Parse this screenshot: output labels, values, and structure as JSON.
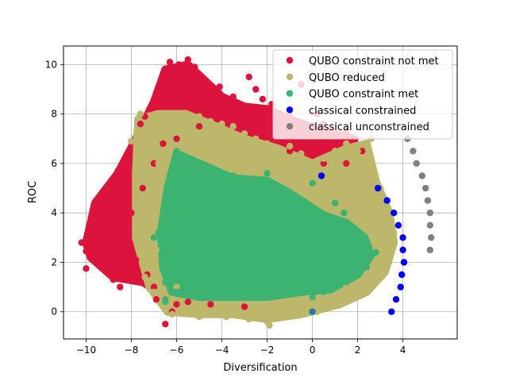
{
  "chart_data": {
    "type": "scatter",
    "title": "",
    "xlabel": "Diversification",
    "ylabel": "ROC",
    "xlim": [
      -11,
      6.4
    ],
    "ylim": [
      -1.1,
      10.75
    ],
    "xticks": [
      -10,
      -8,
      -6,
      -4,
      -2,
      0,
      2,
      4
    ],
    "xtick_labels": [
      "−10",
      "−8",
      "−6",
      "−4",
      "−2",
      "0",
      "2",
      "4"
    ],
    "yticks": [
      0,
      2,
      4,
      6,
      8,
      10
    ],
    "ytick_labels": [
      "0",
      "2",
      "4",
      "6",
      "8",
      "10"
    ],
    "grid": true,
    "legend_position": "top-right",
    "series": [
      {
        "name": "QUBO constraint not met",
        "color": "#dc143c",
        "points": [
          [
            -10.2,
            2.8
          ],
          [
            -10.0,
            1.75
          ],
          [
            -10.0,
            2.45
          ],
          [
            -9.6,
            2.9
          ],
          [
            -9.5,
            3.5
          ],
          [
            -9.4,
            4.5
          ],
          [
            -9.2,
            4.1
          ],
          [
            -9.0,
            5.0
          ],
          [
            -8.8,
            1.3
          ],
          [
            -8.6,
            5.7
          ],
          [
            -8.5,
            1.0
          ],
          [
            -8.4,
            3.2
          ],
          [
            -8.2,
            6.2
          ],
          [
            -8.0,
            6.9
          ],
          [
            -7.8,
            2.1
          ],
          [
            -7.6,
            7.6
          ],
          [
            -7.4,
            7.9
          ],
          [
            -7.2,
            8.2
          ],
          [
            -7.0,
            8.4
          ],
          [
            -7.0,
            1.0
          ],
          [
            -6.9,
            0.5
          ],
          [
            -6.8,
            8.6
          ],
          [
            -6.6,
            8.9
          ],
          [
            -6.6,
            9.2
          ],
          [
            -6.5,
            -0.5
          ],
          [
            -6.4,
            9.5
          ],
          [
            -6.3,
            10.1
          ],
          [
            -6.0,
            9.7
          ],
          [
            -5.9,
            10.0
          ],
          [
            -5.5,
            10.2
          ],
          [
            -5.2,
            9.9
          ],
          [
            -5.0,
            9.6
          ],
          [
            -4.8,
            9.3
          ],
          [
            -4.5,
            9.0
          ],
          [
            -4.2,
            8.7
          ],
          [
            -4.1,
            9.1
          ],
          [
            -3.9,
            8.3
          ],
          [
            -3.5,
            8.7
          ],
          [
            -3.2,
            8.4
          ],
          [
            -3.0,
            8.2
          ],
          [
            -2.8,
            9.5
          ],
          [
            -2.5,
            9.0
          ],
          [
            -2.4,
            7.8
          ],
          [
            -2.2,
            8.6
          ],
          [
            -1.8,
            8.4
          ],
          [
            -1.5,
            7.5
          ],
          [
            -1.0,
            7.9
          ],
          [
            -0.5,
            9.2
          ],
          [
            -0.2,
            7.3
          ],
          [
            0.2,
            8.0
          ],
          [
            0.5,
            7.6
          ],
          [
            0.8,
            7.3
          ],
          [
            1.1,
            7.1
          ],
          [
            1.5,
            7.3
          ],
          [
            1.9,
            7.0
          ],
          [
            0.5,
            6.0
          ],
          [
            -6.0,
            0.3
          ],
          [
            -5.5,
            0.4
          ],
          [
            -4.5,
            0.3
          ],
          [
            -6.2,
            0.0
          ],
          [
            -3.0,
            0.2
          ],
          [
            -4.0,
            8.0
          ],
          [
            -5.0,
            7.5
          ],
          [
            -6.0,
            7.0
          ],
          [
            -7.0,
            6.0
          ],
          [
            -8.0,
            4.0
          ],
          [
            -9.0,
            3.5
          ],
          [
            -8.6,
            2.6
          ],
          [
            -8.0,
            1.8
          ],
          [
            -7.3,
            1.5
          ],
          [
            -2.0,
            7.5
          ],
          [
            -1.0,
            6.5
          ],
          [
            0.8,
            6.8
          ],
          [
            1.5,
            6.0
          ],
          [
            2.2,
            6.5
          ],
          [
            -6.6,
            6.8
          ],
          [
            -7.5,
            5.0
          ],
          [
            -8.3,
            4.8
          ],
          [
            -9.3,
            3.0
          ],
          [
            -8.9,
            2.0
          ]
        ]
      },
      {
        "name": "QUBO reduced",
        "color": "#bdb76b",
        "points": [
          [
            -7.6,
            8.0
          ],
          [
            -7.2,
            7.2
          ],
          [
            -8.0,
            6.9
          ],
          [
            -7.8,
            5.6
          ],
          [
            -7.8,
            3.0
          ],
          [
            -7.5,
            2.0
          ],
          [
            -7.4,
            1.4
          ],
          [
            -7.0,
            0.8
          ],
          [
            -6.6,
            0.2
          ],
          [
            -6.2,
            -0.1
          ],
          [
            -5.5,
            0.1
          ],
          [
            -5.0,
            -0.2
          ],
          [
            -4.5,
            0.0
          ],
          [
            -3.8,
            -0.2
          ],
          [
            -3.0,
            -0.1
          ],
          [
            -2.3,
            -0.2
          ],
          [
            -1.9,
            -0.55
          ],
          [
            -1.5,
            -0.2
          ],
          [
            -1.0,
            0.0
          ],
          [
            -0.5,
            -0.1
          ],
          [
            0.2,
            0.0
          ],
          [
            0.8,
            0.2
          ],
          [
            1.4,
            0.4
          ],
          [
            2.0,
            0.7
          ],
          [
            2.5,
            1.2
          ],
          [
            3.0,
            1.5
          ],
          [
            3.3,
            2.0
          ],
          [
            3.5,
            2.6
          ],
          [
            3.6,
            3.2
          ],
          [
            3.4,
            4.0
          ],
          [
            3.2,
            4.5
          ],
          [
            3.0,
            5.0
          ],
          [
            2.6,
            5.5
          ],
          [
            2.2,
            6.0
          ],
          [
            2.0,
            6.5
          ],
          [
            2.6,
            7.0
          ],
          [
            1.5,
            6.8
          ],
          [
            1.0,
            6.5
          ],
          [
            0.5,
            6.2
          ],
          [
            0.0,
            6.0
          ],
          [
            -0.5,
            6.4
          ],
          [
            -1.0,
            6.7
          ],
          [
            -1.5,
            6.6
          ],
          [
            -2.0,
            6.8
          ],
          [
            -2.5,
            7.0
          ],
          [
            -3.0,
            7.2
          ],
          [
            -3.5,
            7.5
          ],
          [
            -4.0,
            7.6
          ],
          [
            -4.5,
            7.7
          ],
          [
            -5.0,
            7.9
          ],
          [
            -5.5,
            8.0
          ],
          [
            -6.0,
            7.8
          ],
          [
            -6.5,
            7.7
          ],
          [
            -7.0,
            7.6
          ],
          [
            -6.8,
            6.0
          ],
          [
            -7.0,
            5.0
          ],
          [
            -7.6,
            4.0
          ],
          [
            -7.2,
            3.5
          ],
          [
            -6.9,
            2.5
          ],
          [
            -2.8,
            -0.3
          ],
          [
            -2.0,
            -0.4
          ],
          [
            3.2,
            3.4
          ],
          [
            2.8,
            2.5
          ],
          [
            1.5,
            1.0
          ],
          [
            -6.0,
            1.0
          ],
          [
            -7.4,
            6.5
          ],
          [
            -7.3,
            4.6
          ],
          [
            0.6,
            5.6
          ]
        ]
      },
      {
        "name": "QUBO constraint met",
        "color": "#3cb371",
        "points": [
          [
            -6.8,
            3.2
          ],
          [
            -6.6,
            2.0
          ],
          [
            -6.5,
            1.2
          ],
          [
            -6.5,
            4.5
          ],
          [
            -6.3,
            5.5
          ],
          [
            -6.0,
            6.5
          ],
          [
            -5.5,
            6.2
          ],
          [
            -5.0,
            6.0
          ],
          [
            -4.5,
            5.8
          ],
          [
            -4.0,
            5.6
          ],
          [
            -3.5,
            5.5
          ],
          [
            -3.0,
            5.3
          ],
          [
            -2.5,
            5.2
          ],
          [
            -2.0,
            5.6
          ],
          [
            -1.5,
            5.0
          ],
          [
            -1.0,
            4.8
          ],
          [
            -0.5,
            4.5
          ],
          [
            0.0,
            4.2
          ],
          [
            0.5,
            3.9
          ],
          [
            1.0,
            3.6
          ],
          [
            1.5,
            3.6
          ],
          [
            2.0,
            3.2
          ],
          [
            2.4,
            2.8
          ],
          [
            2.8,
            2.4
          ],
          [
            2.4,
            1.8
          ],
          [
            2.0,
            1.6
          ],
          [
            1.5,
            1.2
          ],
          [
            1.0,
            1.0
          ],
          [
            0.5,
            0.8
          ],
          [
            0.0,
            0.6
          ],
          [
            -0.5,
            0.8
          ],
          [
            -1.0,
            0.7
          ],
          [
            -1.5,
            0.7
          ],
          [
            -2.0,
            0.6
          ],
          [
            -2.5,
            0.6
          ],
          [
            -3.0,
            0.7
          ],
          [
            -3.5,
            0.6
          ],
          [
            -4.0,
            0.6
          ],
          [
            -4.5,
            0.6
          ],
          [
            -5.0,
            0.6
          ],
          [
            -5.5,
            0.7
          ],
          [
            -6.0,
            0.8
          ],
          [
            -6.5,
            0.5
          ],
          [
            -6.0,
            4.0
          ],
          [
            -5.0,
            3.0
          ],
          [
            -4.0,
            2.5
          ],
          [
            -3.0,
            3.5
          ],
          [
            -2.0,
            2.5
          ],
          [
            -1.0,
            3.0
          ],
          [
            0.0,
            2.0
          ],
          [
            1.0,
            2.4
          ],
          [
            -5.5,
            2.0
          ],
          [
            -4.5,
            4.5
          ],
          [
            -3.5,
            1.5
          ],
          [
            -2.5,
            4.0
          ],
          [
            -1.5,
            1.8
          ],
          [
            -0.5,
            2.8
          ],
          [
            -7.0,
            3.0
          ],
          [
            2.2,
            2.2
          ],
          [
            1.4,
            4.0
          ],
          [
            1.0,
            4.4
          ],
          [
            0.0,
            5.2
          ],
          [
            -6.5,
            0.4
          ]
        ]
      },
      {
        "name": "classical constrained",
        "color": "#0000ff",
        "points": [
          [
            0.4,
            5.5
          ],
          [
            2.9,
            5.0
          ],
          [
            3.3,
            4.5
          ],
          [
            3.6,
            4.0
          ],
          [
            3.8,
            3.5
          ],
          [
            4.0,
            3.0
          ],
          [
            4.0,
            2.5
          ],
          [
            4.05,
            2.0
          ],
          [
            3.95,
            1.5
          ],
          [
            3.9,
            1.0
          ],
          [
            3.7,
            0.5
          ],
          [
            3.5,
            0.0
          ]
        ]
      },
      {
        "name": "",
        "color": "#1f77b4",
        "points": [
          [
            0.0,
            0.0
          ]
        ]
      },
      {
        "name": "classical unconstrained",
        "color": "#808080",
        "points": [
          [
            4.2,
            7.0
          ],
          [
            4.45,
            6.5
          ],
          [
            4.6,
            6.0
          ],
          [
            4.85,
            5.5
          ],
          [
            5.0,
            5.0
          ],
          [
            5.1,
            4.5
          ],
          [
            5.2,
            4.0
          ],
          [
            5.2,
            3.5
          ],
          [
            5.25,
            3.0
          ],
          [
            5.2,
            2.5
          ]
        ]
      }
    ]
  }
}
